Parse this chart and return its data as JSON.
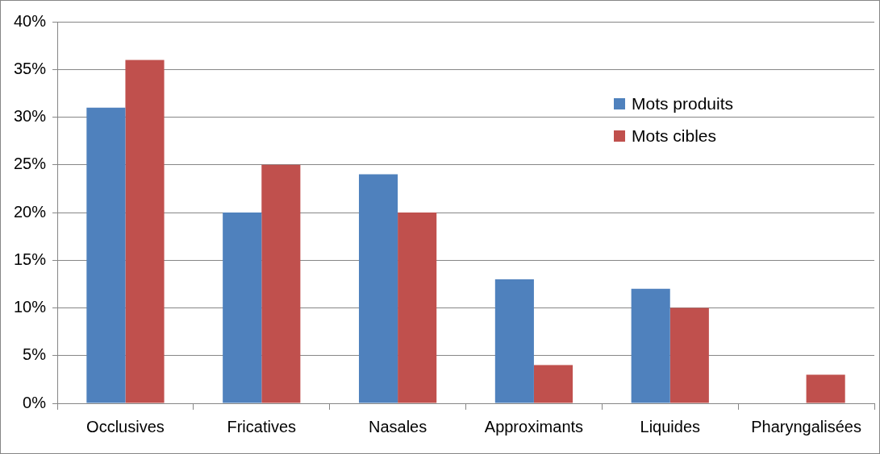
{
  "chart_data": {
    "type": "bar",
    "categories": [
      "Occlusives",
      "Fricatives",
      "Nasales",
      "Approximants",
      "Liquides",
      "Pharyngalisées"
    ],
    "series": [
      {
        "name": "Mots produits",
        "color": "#4f81bd",
        "values": [
          31,
          20,
          24,
          13,
          12,
          0
        ]
      },
      {
        "name": "Mots cibles",
        "color": "#c0504d",
        "values": [
          36,
          25,
          20,
          4,
          10,
          3
        ]
      }
    ],
    "ylim": [
      0,
      40
    ],
    "yticks": [
      {
        "value": 0,
        "label": "0%"
      },
      {
        "value": 5,
        "label": "5%"
      },
      {
        "value": 10,
        "label": "10%"
      },
      {
        "value": 15,
        "label": "15%"
      },
      {
        "value": 20,
        "label": "20%"
      },
      {
        "value": 25,
        "label": "25%"
      },
      {
        "value": 30,
        "label": "30%"
      },
      {
        "value": 35,
        "label": "35%"
      },
      {
        "value": 40,
        "label": "40%"
      }
    ],
    "grid": "y",
    "legend": "top right"
  }
}
